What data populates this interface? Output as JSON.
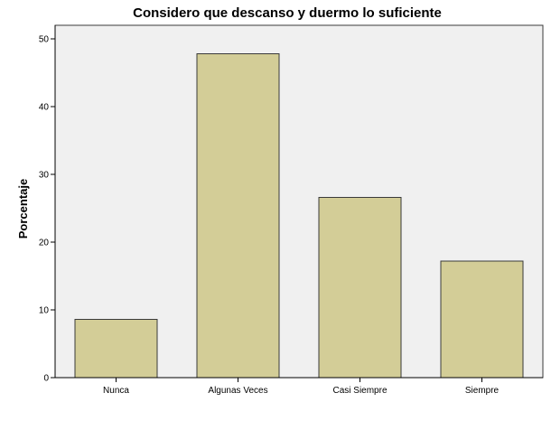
{
  "chart_data": {
    "type": "bar",
    "title": "Considero que descanso y duermo lo suficiente",
    "xlabel": "",
    "ylabel": "Porcentaje",
    "categories": [
      "Nunca",
      "Algunas Veces",
      "Casi Siempre",
      "Siempre"
    ],
    "values": [
      8.6,
      47.8,
      26.6,
      17.2
    ],
    "ylim": [
      0,
      52
    ],
    "yticks": [
      "0",
      "10",
      "20",
      "30",
      "40",
      "50"
    ],
    "grid": false,
    "legend": "none",
    "colors": {
      "bar_fill": "#d3cd97",
      "bar_stroke": "#3a3a3a",
      "plot_bg": "#f0f0f0",
      "axis": "#000000"
    }
  }
}
